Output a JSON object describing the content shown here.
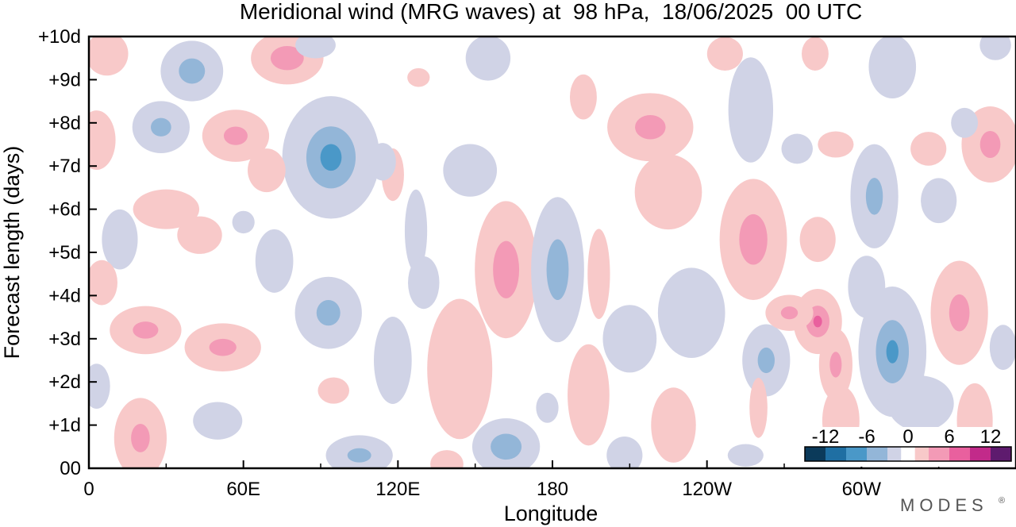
{
  "chart_data": {
    "type": "heatmap",
    "title": "Meridional wind (MRG waves) at  98 hPa,  18/06/2025  00 UTC",
    "xlabel": "Longitude",
    "ylabel": "Forecast length (days)",
    "xlim": [
      0,
      360
    ],
    "ylim": [
      0,
      10
    ],
    "x_ticks": [
      {
        "lon": 0,
        "label": "0"
      },
      {
        "lon": 60,
        "label": "60E"
      },
      {
        "lon": 120,
        "label": "120E"
      },
      {
        "lon": 180,
        "label": "180"
      },
      {
        "lon": 240,
        "label": "120W"
      },
      {
        "lon": 300,
        "label": "60W"
      }
    ],
    "x_minor_ticks": [
      30,
      90,
      150,
      210,
      270,
      330
    ],
    "y_ticks": [
      {
        "day": 0,
        "label": "00"
      },
      {
        "day": 1,
        "label": "+1d"
      },
      {
        "day": 2,
        "label": "+2d"
      },
      {
        "day": 3,
        "label": "+3d"
      },
      {
        "day": 4,
        "label": "+4d"
      },
      {
        "day": 5,
        "label": "+5d"
      },
      {
        "day": 6,
        "label": "+6d"
      },
      {
        "day": 7,
        "label": "+7d"
      },
      {
        "day": 8,
        "label": "+8d"
      },
      {
        "day": 9,
        "label": "+9d"
      },
      {
        "day": 10,
        "label": "+10d"
      }
    ],
    "colorbar": {
      "levels": [
        -15,
        -12,
        -9,
        -6,
        -3,
        -1,
        1,
        3,
        6,
        9,
        12,
        15
      ],
      "tick_labels": [
        {
          "value": -12,
          "label": "-12"
        },
        {
          "value": -6,
          "label": "-6"
        },
        {
          "value": 0,
          "label": "0"
        },
        {
          "value": 6,
          "label": "6"
        },
        {
          "value": 12,
          "label": "12"
        }
      ],
      "colors": [
        "#0b3a5a",
        "#1f6fa3",
        "#4a98c8",
        "#93b6d8",
        "#d0d3e6",
        "#ffffff",
        "#f8c9c9",
        "#f39ab6",
        "#e9609e",
        "#c22a8a",
        "#5e1b6e"
      ]
    },
    "blobs": [
      {
        "lon": 7,
        "day": 9.6,
        "rl": 9,
        "rd": 0.55,
        "v": 5
      },
      {
        "lon": 40,
        "day": 9.2,
        "rl": 13,
        "rd": 0.75,
        "v": -7
      },
      {
        "lon": 77,
        "day": 9.5,
        "rl": 15,
        "rd": 0.65,
        "v": 8
      },
      {
        "lon": 88,
        "day": 9.8,
        "rl": 9,
        "rd": 0.35,
        "v": -3
      },
      {
        "lon": 128,
        "day": 9.05,
        "rl": 5,
        "rd": 0.25,
        "v": 3
      },
      {
        "lon": 155,
        "day": 9.5,
        "rl": 10,
        "rd": 0.6,
        "v": -3
      },
      {
        "lon": 192,
        "day": 8.6,
        "rl": 6,
        "rd": 0.6,
        "v": 3
      },
      {
        "lon": 247,
        "day": 9.6,
        "rl": 8,
        "rd": 0.45,
        "v": 3
      },
      {
        "lon": 257,
        "day": 8.3,
        "rl": 10,
        "rd": 1.4,
        "v": -3
      },
      {
        "lon": 282,
        "day": 9.6,
        "rl": 6,
        "rd": 0.45,
        "v": 3
      },
      {
        "lon": 312,
        "day": 9.3,
        "rl": 10,
        "rd": 0.8,
        "v": -5
      },
      {
        "lon": 352,
        "day": 9.8,
        "rl": 7,
        "rd": 0.4,
        "v": -3
      },
      {
        "lon": 3,
        "day": 7.6,
        "rl": 8,
        "rd": 0.75,
        "v": 5
      },
      {
        "lon": 28,
        "day": 7.9,
        "rl": 12,
        "rd": 0.65,
        "v": -6
      },
      {
        "lon": 57,
        "day": 7.7,
        "rl": 14,
        "rd": 0.65,
        "v": 6
      },
      {
        "lon": 69,
        "day": 6.9,
        "rl": 8,
        "rd": 0.55,
        "v": 5
      },
      {
        "lon": 94,
        "day": 7.2,
        "rl": 20,
        "rd": 1.5,
        "v": -10
      },
      {
        "lon": 114,
        "day": 7.1,
        "rl": 6,
        "rd": 0.5,
        "v": -3
      },
      {
        "lon": 118,
        "day": 6.8,
        "rl": 5,
        "rd": 0.7,
        "v": 3
      },
      {
        "lon": 148,
        "day": 6.9,
        "rl": 12,
        "rd": 0.7,
        "v": -3
      },
      {
        "lon": 218,
        "day": 7.9,
        "rl": 18,
        "rd": 0.85,
        "v": 6
      },
      {
        "lon": 225,
        "day": 6.4,
        "rl": 15,
        "rd": 1.0,
        "v": 3
      },
      {
        "lon": 275,
        "day": 7.4,
        "rl": 7,
        "rd": 0.4,
        "v": -3
      },
      {
        "lon": 290,
        "day": 7.5,
        "rl": 8,
        "rd": 0.35,
        "v": 3
      },
      {
        "lon": 305,
        "day": 6.3,
        "rl": 10,
        "rd": 1.3,
        "v": -6
      },
      {
        "lon": 330,
        "day": 6.2,
        "rl": 8,
        "rd": 0.6,
        "v": -3
      },
      {
        "lon": 326,
        "day": 7.4,
        "rl": 8,
        "rd": 0.45,
        "v": 3
      },
      {
        "lon": 350,
        "day": 7.5,
        "rl": 12,
        "rd": 0.95,
        "v": 6
      },
      {
        "lon": 340,
        "day": 8.0,
        "rl": 6,
        "rd": 0.4,
        "v": -3
      },
      {
        "lon": 30,
        "day": 6.0,
        "rl": 14,
        "rd": 0.5,
        "v": 5
      },
      {
        "lon": 43,
        "day": 5.4,
        "rl": 10,
        "rd": 0.5,
        "v": 3
      },
      {
        "lon": 12,
        "day": 5.3,
        "rl": 8,
        "rd": 0.8,
        "v": -3
      },
      {
        "lon": 60,
        "day": 5.7,
        "rl": 5,
        "rd": 0.3,
        "v": -3
      },
      {
        "lon": 72,
        "day": 4.8,
        "rl": 8,
        "rd": 0.8,
        "v": -5
      },
      {
        "lon": 127,
        "day": 5.5,
        "rl": 5,
        "rd": 1.1,
        "v": -3
      },
      {
        "lon": 130,
        "day": 4.3,
        "rl": 7,
        "rd": 0.7,
        "v": -3
      },
      {
        "lon": 162,
        "day": 4.6,
        "rl": 13,
        "rd": 1.7,
        "v": 7
      },
      {
        "lon": 182,
        "day": 4.6,
        "rl": 11,
        "rd": 1.8,
        "v": -7
      },
      {
        "lon": 198,
        "day": 4.5,
        "rl": 5,
        "rd": 1.2,
        "v": 3
      },
      {
        "lon": 258,
        "day": 5.3,
        "rl": 14,
        "rd": 1.5,
        "v": 7
      },
      {
        "lon": 234,
        "day": 3.6,
        "rl": 15,
        "rd": 1.2,
        "v": -3
      },
      {
        "lon": 283,
        "day": 5.3,
        "rl": 8,
        "rd": 0.6,
        "v": 3
      },
      {
        "lon": 5,
        "day": 4.3,
        "rl": 7,
        "rd": 0.6,
        "v": 3
      },
      {
        "lon": 22,
        "day": 3.2,
        "rl": 15,
        "rd": 0.6,
        "v": 6
      },
      {
        "lon": 52,
        "day": 2.8,
        "rl": 16,
        "rd": 0.6,
        "v": 6
      },
      {
        "lon": 93,
        "day": 3.6,
        "rl": 14,
        "rd": 0.9,
        "v": -6
      },
      {
        "lon": 118,
        "day": 2.5,
        "rl": 8,
        "rd": 1.1,
        "v": -5
      },
      {
        "lon": 144,
        "day": 2.3,
        "rl": 14,
        "rd": 1.8,
        "v": 4
      },
      {
        "lon": 210,
        "day": 3.0,
        "rl": 12,
        "rd": 0.9,
        "v": -3
      },
      {
        "lon": 272,
        "day": 3.6,
        "rl": 10,
        "rd": 0.45,
        "v": 6
      },
      {
        "lon": 283,
        "day": 3.4,
        "rl": 10,
        "rd": 0.8,
        "v": 9
      },
      {
        "lon": 290,
        "day": 2.4,
        "rl": 7,
        "rd": 0.9,
        "v": 6
      },
      {
        "lon": 292,
        "day": 1.1,
        "rl": 8,
        "rd": 0.9,
        "v": 4
      },
      {
        "lon": 263,
        "day": 2.5,
        "rl": 10,
        "rd": 0.9,
        "v": -6
      },
      {
        "lon": 312,
        "day": 2.7,
        "rl": 14,
        "rd": 1.6,
        "v": -9
      },
      {
        "lon": 323,
        "day": 1.5,
        "rl": 14,
        "rd": 0.7,
        "v": -5
      },
      {
        "lon": 302,
        "day": 4.2,
        "rl": 8,
        "rd": 0.8,
        "v": -4
      },
      {
        "lon": 338,
        "day": 3.6,
        "rl": 12,
        "rd": 1.3,
        "v": 6
      },
      {
        "lon": 355,
        "day": 2.8,
        "rl": 6,
        "rd": 0.6,
        "v": -3
      },
      {
        "lon": 3,
        "day": 1.9,
        "rl": 6,
        "rd": 0.6,
        "v": -3
      },
      {
        "lon": 20,
        "day": 0.7,
        "rl": 11,
        "rd": 1.0,
        "v": 6
      },
      {
        "lon": 50,
        "day": 1.1,
        "rl": 11,
        "rd": 0.5,
        "v": -3
      },
      {
        "lon": 95,
        "day": 1.8,
        "rl": 7,
        "rd": 0.35,
        "v": 3
      },
      {
        "lon": 105,
        "day": 0.3,
        "rl": 14,
        "rd": 0.5,
        "v": -6
      },
      {
        "lon": 139,
        "day": 0.1,
        "rl": 7,
        "rd": 0.35,
        "v": 5
      },
      {
        "lon": 162,
        "day": 0.5,
        "rl": 14,
        "rd": 0.7,
        "v": -8
      },
      {
        "lon": 178,
        "day": 1.4,
        "rl": 5,
        "rd": 0.4,
        "v": -3
      },
      {
        "lon": 194,
        "day": 1.7,
        "rl": 9,
        "rd": 1.3,
        "v": 4
      },
      {
        "lon": 227,
        "day": 1.0,
        "rl": 10,
        "rd": 1.0,
        "v": 3
      },
      {
        "lon": 208,
        "day": 0.3,
        "rl": 8,
        "rd": 0.5,
        "v": -3
      },
      {
        "lon": 260,
        "day": 1.4,
        "rl": 4,
        "rd": 0.8,
        "v": 3
      },
      {
        "lon": 255,
        "day": 0.3,
        "rl": 8,
        "rd": 0.3,
        "v": -3
      },
      {
        "lon": 344,
        "day": 1.1,
        "rl": 8,
        "rd": 1.0,
        "v": 3
      }
    ]
  },
  "logo": {
    "text": "MODES",
    "mark": "®"
  }
}
